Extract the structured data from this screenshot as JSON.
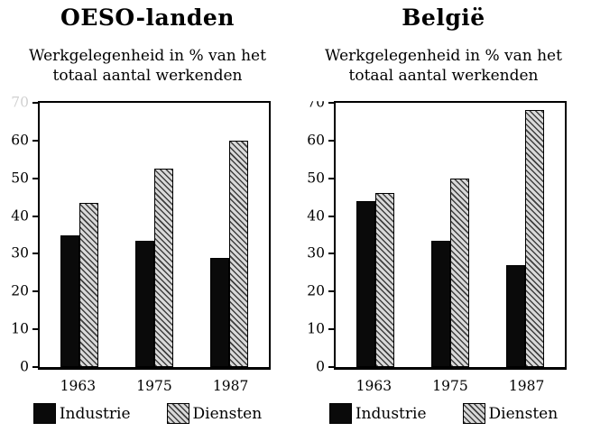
{
  "page": {
    "background": "#ffffff"
  },
  "colors": {
    "bar_industrie": "#0a0a0a",
    "hatch_dark": "#3f3f3f",
    "hatch_light": "#d9d9d9",
    "axis_frame": "#000000",
    "text": "#000000"
  },
  "chart_data": [
    {
      "type": "bar",
      "title": "OESO-landen",
      "subtitle_lines": [
        "Werkgelegenheid in % van het",
        "totaal aantal werkenden"
      ],
      "categories": [
        "1963",
        "1975",
        "1987"
      ],
      "series": [
        {
          "name": "Industrie",
          "fill": "solid-black",
          "values": [
            35,
            33.5,
            29
          ]
        },
        {
          "name": "Diensten",
          "fill": "diagonal-hatch",
          "values": [
            43.5,
            52.5,
            60
          ]
        }
      ],
      "xlabel": "",
      "ylabel": "",
      "ylim": [
        0,
        70
      ],
      "yticks": [
        0,
        10,
        20,
        30,
        40,
        50,
        60,
        70
      ],
      "grid": false,
      "legend_position": "bottom"
    },
    {
      "type": "bar",
      "title": "België",
      "subtitle_lines": [
        "Werkgelegenheid in % van het",
        "totaal aantal werkenden"
      ],
      "categories": [
        "1963",
        "1975",
        "1987"
      ],
      "series": [
        {
          "name": "Industrie",
          "fill": "solid-black",
          "values": [
            44,
            33.5,
            27
          ]
        },
        {
          "name": "Diensten",
          "fill": "diagonal-hatch",
          "values": [
            46,
            50,
            68
          ]
        }
      ],
      "xlabel": "",
      "ylabel": "",
      "ylim": [
        0,
        70
      ],
      "yticks": [
        0,
        10,
        20,
        30,
        40,
        50,
        60,
        70
      ],
      "grid": false,
      "legend_position": "bottom"
    }
  ]
}
